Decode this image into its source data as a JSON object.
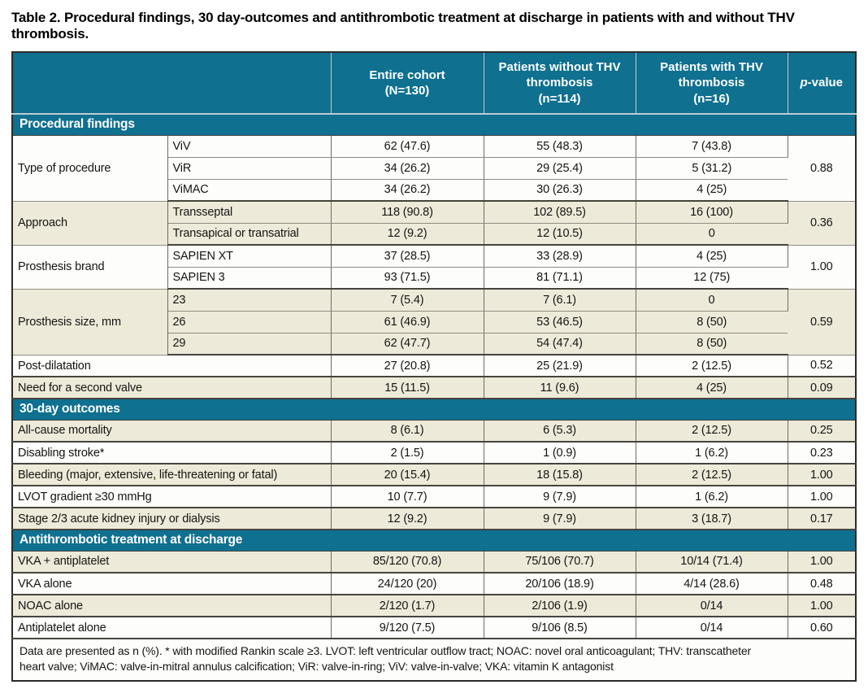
{
  "title": "Table 2. Procedural findings, 30 day-outcomes and antithrombotic treatment at discharge in patients with and without THV thrombosis.",
  "header": {
    "columns": [
      "Entire cohort\n(N=130)",
      "Patients without THV\nthrombosis\n(n=114)",
      "Patients with THV\nthrombosis\n(n=16)"
    ],
    "p_italic": "p",
    "p_rest": "-value"
  },
  "sections": [
    {
      "label": "Procedural findings",
      "groups": [
        {
          "label": "Type of procedure",
          "shade": "white",
          "p": "0.88",
          "rows": [
            {
              "sub": "ViV",
              "values": [
                "62 (47.6)",
                "55 (48.3)",
                "7 (43.8)"
              ]
            },
            {
              "sub": "ViR",
              "values": [
                "34 (26.2)",
                "29 (25.4)",
                "5 (31.2)"
              ]
            },
            {
              "sub": "ViMAC",
              "values": [
                "34 (26.2)",
                "30 (26.3)",
                "4 (25)"
              ]
            }
          ]
        },
        {
          "label": "Approach",
          "shade": "beige",
          "p": "0.36",
          "rows": [
            {
              "sub": "Transseptal",
              "values": [
                "118 (90.8)",
                "102 (89.5)",
                "16 (100)"
              ]
            },
            {
              "sub": "Transapical or transatrial",
              "values": [
                "12 (9.2)",
                "12 (10.5)",
                "0"
              ]
            }
          ]
        },
        {
          "label": "Prosthesis brand",
          "shade": "white",
          "p": "1.00",
          "rows": [
            {
              "sub": "SAPIEN XT",
              "values": [
                "37 (28.5)",
                "33 (28.9)",
                "4 (25)"
              ]
            },
            {
              "sub": "SAPIEN 3",
              "values": [
                "93 (71.5)",
                "81 (71.1)",
                "12 (75)"
              ]
            }
          ]
        },
        {
          "label": "Prosthesis size, mm",
          "shade": "beige",
          "p": "0.59",
          "rows": [
            {
              "sub": "23",
              "values": [
                "7 (5.4)",
                "7 (6.1)",
                "0"
              ]
            },
            {
              "sub": "26",
              "values": [
                "61 (46.9)",
                "53 (46.5)",
                "8 (50)"
              ]
            },
            {
              "sub": "29",
              "values": [
                "62 (47.7)",
                "54 (47.4)",
                "8 (50)"
              ]
            }
          ]
        },
        {
          "label": "Post-dilatation",
          "shade": "white",
          "p": "0.52",
          "rows": [
            {
              "sub": null,
              "values": [
                "27 (20.8)",
                "25 (21.9)",
                "2 (12.5)"
              ]
            }
          ]
        },
        {
          "label": "Need for a second valve",
          "shade": "beige",
          "p": "0.09",
          "rows": [
            {
              "sub": null,
              "values": [
                "15 (11.5)",
                "11 (9.6)",
                "4 (25)"
              ]
            }
          ]
        }
      ]
    },
    {
      "label": "30-day outcomes",
      "groups": [
        {
          "label": "All-cause mortality",
          "shade": "beige",
          "p": "0.25",
          "rows": [
            {
              "sub": null,
              "values": [
                "8 (6.1)",
                "6 (5.3)",
                "2 (12.5)"
              ]
            }
          ]
        },
        {
          "label": "Disabling stroke*",
          "shade": "white",
          "p": "0.23",
          "rows": [
            {
              "sub": null,
              "values": [
                "2 (1.5)",
                "1 (0.9)",
                "1 (6.2)"
              ]
            }
          ]
        },
        {
          "label": "Bleeding (major, extensive, life-threatening or fatal)",
          "shade": "beige",
          "p": "1.00",
          "rows": [
            {
              "sub": null,
              "values": [
                "20 (15.4)",
                "18 (15.8)",
                "2 (12.5)"
              ]
            }
          ]
        },
        {
          "label": "LVOT gradient ≥30 mmHg",
          "shade": "white",
          "p": "1.00",
          "rows": [
            {
              "sub": null,
              "values": [
                "10 (7.7)",
                "9 (7.9)",
                "1 (6.2)"
              ]
            }
          ]
        },
        {
          "label": "Stage 2/3 acute kidney injury or dialysis",
          "shade": "beige",
          "p": "0.17",
          "rows": [
            {
              "sub": null,
              "values": [
                "12 (9.2)",
                "9 (7.9)",
                "3 (18.7)"
              ]
            }
          ]
        }
      ]
    },
    {
      "label": "Antithrombotic treatment at discharge",
      "groups": [
        {
          "label": "VKA + antiplatelet",
          "shade": "beige",
          "p": "1.00",
          "rows": [
            {
              "sub": null,
              "values": [
                "85/120 (70.8)",
                "75/106 (70.7)",
                "10/14 (71.4)"
              ]
            }
          ]
        },
        {
          "label": "VKA alone",
          "shade": "white",
          "p": "0.48",
          "rows": [
            {
              "sub": null,
              "values": [
                "24/120 (20)",
                "20/106 (18.9)",
                "4/14 (28.6)"
              ]
            }
          ]
        },
        {
          "label": "NOAC alone",
          "shade": "beige",
          "p": "1.00",
          "rows": [
            {
              "sub": null,
              "values": [
                "2/120 (1.7)",
                "2/106 (1.9)",
                "0/14"
              ]
            }
          ]
        },
        {
          "label": "Antiplatelet alone",
          "shade": "white",
          "p": "0.60",
          "rows": [
            {
              "sub": null,
              "values": [
                "9/120 (7.5)",
                "9/106 (8.5)",
                "0/14"
              ]
            }
          ]
        }
      ]
    }
  ],
  "footnote": "Data are presented as n (%). * with modified Rankin scale ≥3. LVOT: left ventricular outflow tract; NOAC: novel oral anticoagulant; THV: transcatheter\nheart valve; ViMAC: valve-in-mitral annulus calcification; ViR: valve-in-ring; ViV: valve-in-valve; VKA: vitamin K antagonist",
  "colors": {
    "teal_header": "#0f7090",
    "row_beige": "#eeead9",
    "row_white": "#fdfdfb",
    "border_outer": "#2c2b27",
    "border_group": "#45443f",
    "border_subrow": "#8e8c84",
    "border_vertical": "#6e6c64",
    "header_divider": "#bfccd0",
    "header_text": "#ffffff",
    "body_text": "#141414"
  }
}
